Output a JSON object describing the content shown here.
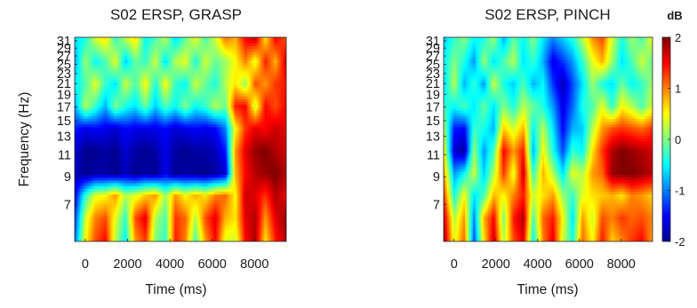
{
  "colorbar": {
    "label": "dB",
    "ticks": [
      "2",
      "1",
      "0",
      "-1",
      "-2"
    ],
    "range": [
      -2,
      2
    ],
    "colors": [
      "#00008f",
      "#0000ff",
      "#0080ff",
      "#00ffff",
      "#80ff80",
      "#ffff00",
      "#ff8000",
      "#ff0000",
      "#800000"
    ]
  },
  "chart_data": [
    {
      "type": "heatmap",
      "title": "S02 ERSP, GRASP",
      "xlabel": "Time (ms)",
      "ylabel": "Frequency (Hz)",
      "xticks": [
        "0",
        "2000",
        "4000",
        "6000",
        "8000"
      ],
      "yticks": [
        "31",
        "29",
        "27",
        "25",
        "23",
        "21",
        "19",
        "17",
        "15",
        "13",
        "11",
        "9",
        "7"
      ],
      "xlim": [
        -500,
        9500
      ],
      "ylim": [
        5,
        32
      ],
      "y_scale": "log",
      "zlim": [
        -2,
        2
      ],
      "zunit": "dB",
      "rows_low_to_high": [
        [
          -1.0,
          0.5,
          1.2,
          1.5,
          0.2,
          -0.5,
          0.9,
          1.3,
          0.0,
          -0.3,
          1.4,
          1.0,
          -0.2,
          0.9,
          1.5,
          0.4,
          0.3,
          1.5,
          1.8,
          0.6,
          1.4,
          1.8
        ],
        [
          -1.2,
          0.3,
          1.0,
          1.2,
          0.4,
          -0.3,
          1.2,
          1.6,
          0.2,
          -0.2,
          1.3,
          1.1,
          0.2,
          1.2,
          1.6,
          0.8,
          0.6,
          1.6,
          1.8,
          0.9,
          1.6,
          1.9
        ],
        [
          -1.5,
          -0.3,
          0.4,
          0.5,
          0.9,
          0.2,
          0.4,
          0.7,
          0.9,
          0.1,
          0.9,
          0.5,
          0.8,
          0.6,
          1.0,
          1.1,
          0.5,
          1.7,
          1.6,
          1.3,
          1.8,
          1.6
        ],
        [
          -1.8,
          -2.0,
          -1.9,
          -1.9,
          -2.0,
          -1.8,
          -2.0,
          -1.9,
          -2.0,
          -1.6,
          -2.0,
          -1.9,
          -2.0,
          -2.0,
          -1.9,
          -1.7,
          0.8,
          1.5,
          1.8,
          1.9,
          2.0,
          1.8
        ],
        [
          -1.7,
          -2.0,
          -2.0,
          -1.9,
          -2.0,
          -1.7,
          -1.9,
          -2.0,
          -1.9,
          -1.6,
          -1.9,
          -2.0,
          -1.9,
          -1.9,
          -1.8,
          -1.4,
          0.9,
          1.6,
          1.9,
          2.0,
          1.8,
          1.7
        ],
        [
          -1.4,
          -1.6,
          -1.5,
          -1.6,
          -1.7,
          -1.5,
          -1.6,
          -1.6,
          -1.6,
          -1.5,
          -1.7,
          -1.6,
          -1.5,
          -1.6,
          -1.5,
          -1.0,
          0.5,
          1.3,
          1.6,
          1.5,
          1.7,
          1.6
        ],
        [
          -0.8,
          0.2,
          -0.3,
          -0.8,
          0.0,
          -0.4,
          -0.6,
          -0.1,
          -0.7,
          -0.2,
          -0.5,
          0.0,
          -0.5,
          -0.3,
          0.2,
          -0.1,
          1.4,
          1.5,
          0.3,
          1.5,
          1.2,
          1.5
        ],
        [
          -0.5,
          -0.2,
          0.4,
          -0.3,
          -0.6,
          0.3,
          -0.2,
          0.5,
          -0.4,
          0.5,
          -0.3,
          -0.5,
          0.3,
          -0.1,
          -0.4,
          0.2,
          0.6,
          0.1,
          1.2,
          0.9,
          1.3,
          1.4
        ],
        [
          -0.8,
          0.1,
          -0.5,
          -0.2,
          0.4,
          -0.7,
          -0.1,
          -0.3,
          0.3,
          -0.6,
          0.2,
          0.4,
          -0.4,
          0.3,
          -0.1,
          0.1,
          0.5,
          1.0,
          0.4,
          1.4,
          0.8,
          1.6
        ],
        [
          -0.6,
          -0.4,
          0.3,
          0.6,
          -0.3,
          0.2,
          0.6,
          -0.5,
          -0.2,
          0.2,
          -0.6,
          -0.1,
          0.4,
          -0.2,
          0.3,
          1.0,
          0.8,
          1.5,
          1.7,
          0.6,
          1.5,
          1.2
        ]
      ]
    },
    {
      "type": "heatmap",
      "title": "S02 ERSP, PINCH",
      "xlabel": "Time (ms)",
      "ylabel": "",
      "xticks": [
        "0",
        "2000",
        "4000",
        "6000",
        "8000"
      ],
      "yticks": [
        "31",
        "29",
        "27",
        "25",
        "23",
        "21",
        "19",
        "17",
        "15",
        "13",
        "11",
        "9",
        "7"
      ],
      "xlim": [
        -500,
        9500
      ],
      "ylim": [
        5,
        32
      ],
      "y_scale": "log",
      "zlim": [
        -2,
        2
      ],
      "zunit": "dB",
      "rows_low_to_high": [
        [
          1.8,
          0.4,
          1.1,
          -1.2,
          0.6,
          1.7,
          0.2,
          1.2,
          1.6,
          -0.5,
          1.0,
          1.6,
          0.3,
          -0.4,
          1.1,
          0.5,
          1.4,
          0.7,
          1.0,
          1.3,
          1.5,
          0.9
        ],
        [
          1.6,
          0.2,
          0.9,
          -1.0,
          0.8,
          1.5,
          0.0,
          1.4,
          1.8,
          -0.2,
          1.1,
          1.4,
          0.5,
          -0.6,
          0.9,
          0.3,
          1.2,
          1.0,
          1.3,
          1.1,
          1.2,
          1.0
        ],
        [
          1.2,
          -0.4,
          0.5,
          -0.6,
          -0.2,
          0.8,
          0.5,
          1.0,
          1.4,
          0.3,
          0.6,
          0.9,
          0.1,
          -0.3,
          0.4,
          0.6,
          0.7,
          0.8,
          0.6,
          1.0,
          0.9,
          0.7
        ],
        [
          0.8,
          -0.9,
          -0.5,
          0.3,
          -0.7,
          0.2,
          1.3,
          0.4,
          1.7,
          -0.3,
          0.8,
          0.2,
          -0.6,
          0.4,
          0.2,
          0.9,
          1.1,
          1.9,
          2.0,
          2.0,
          1.9,
          1.8
        ],
        [
          0.4,
          -1.7,
          -1.9,
          0.1,
          -0.9,
          -0.2,
          1.5,
          0.9,
          1.4,
          -0.8,
          0.5,
          -0.4,
          -1.2,
          -0.3,
          -0.5,
          0.6,
          1.3,
          1.8,
          2.0,
          1.9,
          1.8,
          1.7
        ],
        [
          0.1,
          -1.4,
          -1.5,
          -0.3,
          -0.4,
          -0.8,
          0.7,
          0.3,
          0.8,
          -0.5,
          0.2,
          -0.6,
          -1.5,
          -0.8,
          -0.7,
          0.2,
          0.9,
          1.2,
          1.3,
          1.2,
          1.1,
          1.3
        ],
        [
          -0.3,
          -0.5,
          -0.2,
          -0.6,
          -0.1,
          -0.6,
          0.0,
          -0.4,
          0.2,
          -0.1,
          -0.4,
          -0.9,
          -1.6,
          -1.1,
          -0.4,
          -0.2,
          0.4,
          -0.3,
          0.5,
          0.2,
          -0.2,
          0.3
        ],
        [
          -0.6,
          0.2,
          -0.8,
          -0.3,
          -0.9,
          0.3,
          -0.4,
          -0.7,
          -0.2,
          -0.8,
          -0.5,
          -1.3,
          -1.8,
          -1.2,
          -0.6,
          0.1,
          -0.4,
          -0.6,
          -0.1,
          -0.5,
          -0.3,
          0.1
        ],
        [
          -0.5,
          0.0,
          -0.4,
          -0.9,
          0.1,
          -0.6,
          -0.2,
          0.2,
          -0.6,
          -0.3,
          -0.8,
          -1.6,
          -1.3,
          -0.9,
          -0.3,
          0.4,
          0.8,
          0.1,
          -0.6,
          -0.2,
          0.3,
          -0.1
        ],
        [
          -0.7,
          -0.3,
          0.0,
          -0.5,
          -0.4,
          0.1,
          -0.8,
          -0.1,
          -0.5,
          0.0,
          -0.6,
          -1.0,
          -0.7,
          -0.4,
          0.2,
          0.9,
          1.2,
          0.3,
          -0.4,
          0.1,
          -0.2,
          0.4
        ]
      ]
    }
  ]
}
